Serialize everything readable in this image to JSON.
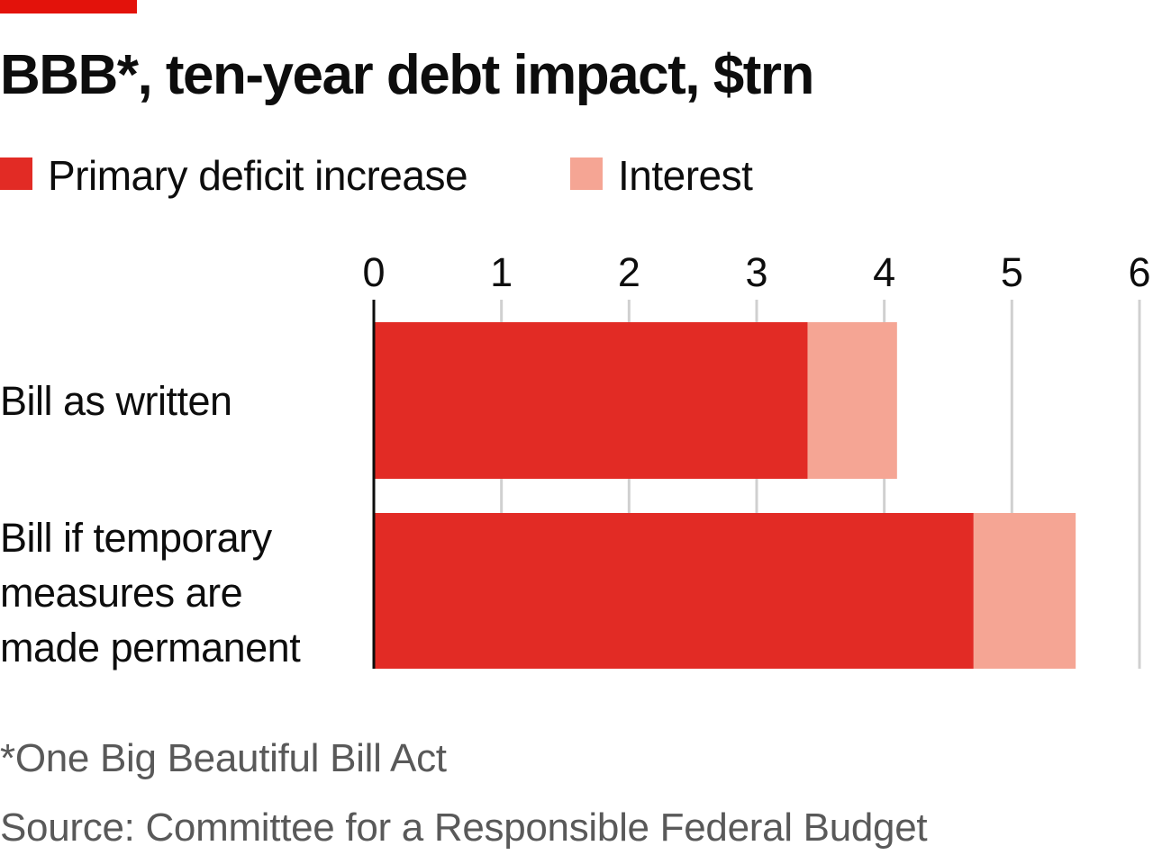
{
  "colors": {
    "accent": "#e3120b",
    "primary": "#e22b25",
    "interest": "#f5a594",
    "gridline": "#d0d0d0",
    "axis": "#0d0d0d",
    "footnote": "#595959"
  },
  "header": {
    "title": "BBB*, ten-year debt impact, $trn"
  },
  "legend": {
    "primary_label": "Primary deficit increase",
    "interest_label": "Interest"
  },
  "rows": {
    "row1_label": "Bill as written",
    "row2_label_line1": "Bill if temporary",
    "row2_label_line2": "measures are",
    "row2_label_line3": "made permanent"
  },
  "footer": {
    "footnote": "*One Big Beautiful Bill Act",
    "source": "Source: Committee for a Responsible Federal Budget"
  },
  "chart_data": {
    "type": "bar",
    "orientation": "horizontal",
    "stacked": true,
    "title": "BBB*, ten-year debt impact, $trn",
    "categories": [
      "Bill as written",
      "Bill if temporary measures are made permanent"
    ],
    "series": [
      {
        "name": "Primary deficit increase",
        "values": [
          3.4,
          4.7
        ]
      },
      {
        "name": "Interest",
        "values": [
          0.7,
          0.8
        ]
      }
    ],
    "xlim": [
      0,
      6
    ],
    "xticks": [
      0,
      1,
      2,
      3,
      4,
      5,
      6
    ],
    "tick_labels": [
      "0",
      "1",
      "2",
      "3",
      "4",
      "5",
      "6"
    ],
    "grid": true,
    "xlabel": "",
    "ylabel": "",
    "legend_position": "top-left"
  }
}
